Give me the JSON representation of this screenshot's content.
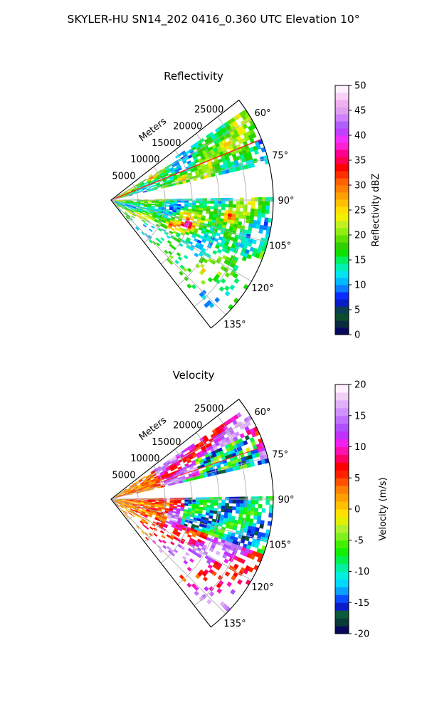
{
  "figure": {
    "suptitle": "SKYLER-HU  SN14_202  0416_0.360 UTC Elevation 10°"
  },
  "colors": {
    "reflectivity_cmap": [
      "#07085c",
      "#0a2a40",
      "#0b4d2e",
      "#0b3d55",
      "#0a1cc8",
      "#0a2cff",
      "#0a7cff",
      "#00b8ff",
      "#00e5f0",
      "#00f0b0",
      "#00f060",
      "#10e000",
      "#30d000",
      "#60e000",
      "#90ef10",
      "#c0f020",
      "#f0f000",
      "#ffe000",
      "#ffc000",
      "#ffa000",
      "#ff8000",
      "#ff6000",
      "#ff3000",
      "#ff0000",
      "#ff0050",
      "#ff0090",
      "#ff20d0",
      "#f030ff",
      "#c040ff",
      "#b060ff",
      "#d080ff",
      "#e0a0f0",
      "#f0b0f0",
      "#f8d0f8",
      "#fff0ff"
    ],
    "velocity_cmap": [
      "#07085c",
      "#0a3a35",
      "#0b5a3a",
      "#0a1cc8",
      "#0a4cff",
      "#0aa0ff",
      "#00d8ff",
      "#00f0e0",
      "#00f0a0",
      "#00f050",
      "#10f000",
      "#40f000",
      "#80f020",
      "#b0f030",
      "#e0f000",
      "#ffe000",
      "#ffc000",
      "#ffa000",
      "#ff8000",
      "#ff5000",
      "#ff2000",
      "#ff0000",
      "#ff0060",
      "#ff10b0",
      "#f020f0",
      "#c030ff",
      "#b050ff",
      "#c070ff",
      "#d090ff",
      "#e0b0f8",
      "#f0d0f8",
      "#fff0ff"
    ]
  },
  "chart_data": [
    {
      "type": "heatmap",
      "subtype": "radar-ppi-sector",
      "title": "Reflectivity",
      "field": "reflectivity",
      "range_label": "Meters",
      "range_ticks": [
        5000,
        10000,
        15000,
        20000,
        25000
      ],
      "range_max": 30000,
      "azimuth_ticks": [
        "60°",
        "75°",
        "90°",
        "105°",
        "120°",
        "135°"
      ],
      "azimuth_range_deg": [
        52,
        142
      ],
      "colorbar": {
        "label": "Reflectivity dBZ",
        "min": 0,
        "max": 50,
        "ticks": [
          0,
          5,
          10,
          15,
          20,
          25,
          30,
          35,
          40,
          45,
          50
        ]
      },
      "gap_azimuth_deg": [
        75,
        90
      ],
      "features": [
        {
          "az": 61,
          "r_frac": 0.28,
          "value": 30
        },
        {
          "az": 72,
          "r_frac": 0.45,
          "value": 33
        },
        {
          "az": 100,
          "r_frac": 0.45,
          "value": 30
        },
        {
          "az": 107,
          "r_frac": 0.48,
          "value": 36
        },
        {
          "az": 112,
          "r_frac": 0.4,
          "value": 32
        },
        {
          "az": 97,
          "r_frac": 0.72,
          "value": 30
        },
        {
          "az": 64,
          "r_frac": 0.78,
          "value": 28
        }
      ]
    },
    {
      "type": "heatmap",
      "subtype": "radar-ppi-sector",
      "title": "Velocity",
      "field": "velocity",
      "range_label": "Meters",
      "range_ticks": [
        5000,
        10000,
        15000,
        20000,
        25000
      ],
      "range_max": 30000,
      "azimuth_ticks": [
        "60°",
        "75°",
        "90°",
        "105°",
        "120°",
        "135°"
      ],
      "azimuth_range_deg": [
        52,
        142
      ],
      "colorbar": {
        "label": "Velocity (m/s)",
        "min": -20,
        "max": 20,
        "ticks": [
          -20,
          -15,
          -10,
          -5,
          0,
          5,
          10,
          15,
          20
        ]
      },
      "gap_azimuth_deg": [
        75,
        90
      ]
    }
  ]
}
